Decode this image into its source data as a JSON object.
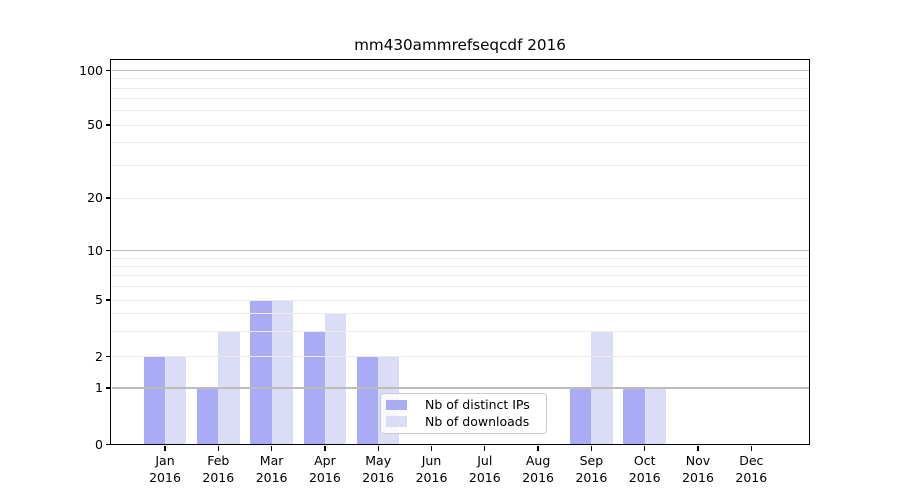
{
  "page": {
    "background": "#ffffff"
  },
  "chart_data": {
    "type": "bar",
    "title": "mm430ammrefseqcdf 2016",
    "categories": [
      "Jan",
      "Feb",
      "Mar",
      "Apr",
      "May",
      "Jun",
      "Jul",
      "Aug",
      "Sep",
      "Oct",
      "Nov",
      "Dec"
    ],
    "category_year": "2016",
    "series": [
      {
        "name": "Nb of distinct IPs",
        "color": "#aaabf5",
        "values": [
          2,
          1,
          5,
          3,
          2,
          0,
          0,
          0,
          1,
          1,
          0,
          0
        ]
      },
      {
        "name": "Nb of downloads",
        "color": "#dbdcf6",
        "values": [
          2,
          3,
          5,
          4,
          2,
          0,
          0,
          0,
          3,
          1,
          0,
          0
        ]
      }
    ],
    "yscale": "log-like",
    "ylim": [
      0,
      100
    ],
    "ytick_labels": [
      100,
      50,
      20,
      10,
      5,
      2,
      1,
      0
    ],
    "ygrid_major": [
      1,
      10,
      100
    ],
    "ygrid_minor": [
      2,
      3,
      4,
      5,
      6,
      7,
      8,
      9,
      20,
      30,
      40,
      50,
      60,
      70,
      80,
      90
    ],
    "grid": "both, drawn above bars",
    "legend_position": "lower center"
  },
  "colors": {
    "axis": "#000000",
    "major_grid": "#bcbcbc",
    "minor_grid": "#ebebeb",
    "legend_border": "#cbcbcb",
    "text": "#000000"
  }
}
